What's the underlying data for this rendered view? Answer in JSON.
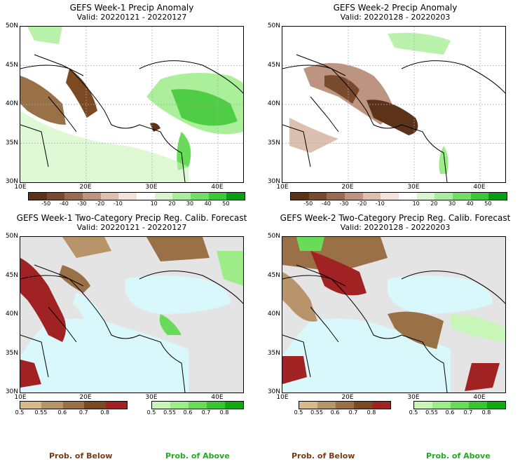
{
  "panels": [
    {
      "id": "w1-anom",
      "title": "GEFS Week-1 Precip Anomaly",
      "valid": "Valid: 20220121 - 20220127",
      "lat_labels": [
        "50N",
        "45N",
        "40N",
        "35N",
        "30N"
      ],
      "lon_labels": [
        "10E",
        "20E",
        "30E",
        "40E"
      ],
      "colorbar_labels": [
        "-50",
        "-40",
        "-30",
        "-20",
        "-10",
        "10",
        "20",
        "30",
        "40",
        "50"
      ],
      "colorbar_colors": [
        "#5c3218",
        "#7a4a2e",
        "#9b6b51",
        "#bc9480",
        "#dbc0b0",
        "#f3e3da",
        "#ffffff",
        "#d8f5d0",
        "#a9eca0",
        "#72de68",
        "#3cc83a",
        "#0a9c14"
      ]
    },
    {
      "id": "w2-anom",
      "title": "GEFS Week-2 Precip Anomaly",
      "valid": "Valid: 20220128 - 20220203",
      "lat_labels": [
        "50N",
        "45N",
        "40N",
        "35N",
        "30N"
      ],
      "lon_labels": [
        "10E",
        "20E",
        "30E",
        "40E"
      ],
      "colorbar_labels": [
        "-50",
        "-40",
        "-30",
        "-20",
        "-10",
        "10",
        "20",
        "30",
        "40",
        "50"
      ],
      "colorbar_colors": [
        "#5c3218",
        "#7a4a2e",
        "#9b6b51",
        "#bc9480",
        "#dbc0b0",
        "#f3e3da",
        "#ffffff",
        "#d8f5d0",
        "#a9eca0",
        "#72de68",
        "#3cc83a",
        "#0a9c14"
      ]
    },
    {
      "id": "w1-prob",
      "title": "GEFS Week-1 Two-Category Precip Reg. Calib. Forecast",
      "valid": "Valid: 20220121 - 20220127",
      "lat_labels": [
        "50N",
        "45N",
        "40N",
        "35N",
        "30N"
      ],
      "lon_labels": [
        "10E",
        "20E",
        "30E",
        "40E"
      ],
      "below_labels": [
        "0.5",
        "0.55",
        "0.6",
        "0.7",
        "0.8"
      ],
      "above_labels": [
        "0.5",
        "0.55",
        "0.6",
        "0.7",
        "0.8"
      ],
      "below_colors": [
        "#d8b98c",
        "#b8946a",
        "#9a7046",
        "#7c4a22",
        "#a02222"
      ],
      "above_colors": [
        "#c8f5b8",
        "#9cec88",
        "#68dc58",
        "#38c630",
        "#10a810"
      ],
      "below_title": "Prob. of Below",
      "above_title": "Prob. of Above"
    },
    {
      "id": "w2-prob",
      "title": "GEFS Week-2 Two-Category Precip Reg. Calib. Forecast",
      "valid": "Valid: 20220128 - 20220203",
      "lat_labels": [
        "50N",
        "45N",
        "40N",
        "35N",
        "30N"
      ],
      "lon_labels": [
        "10E",
        "20E",
        "30E",
        "40E"
      ],
      "below_labels": [
        "0.5",
        "0.55",
        "0.6",
        "0.7",
        "0.8"
      ],
      "above_labels": [
        "0.5",
        "0.55",
        "0.6",
        "0.7",
        "0.8"
      ],
      "below_colors": [
        "#d8b98c",
        "#b8946a",
        "#9a7046",
        "#7c4a22",
        "#a02222"
      ],
      "above_colors": [
        "#c8f5b8",
        "#9cec88",
        "#68dc58",
        "#38c630",
        "#10a810"
      ],
      "below_title": "Prob. of Below",
      "above_title": "Prob. of Above"
    }
  ],
  "colors": {
    "sea": "#d8f8fc",
    "land_gray": "#e4e4e4",
    "below_text": "#7a3a18",
    "above_text": "#22aa22"
  }
}
